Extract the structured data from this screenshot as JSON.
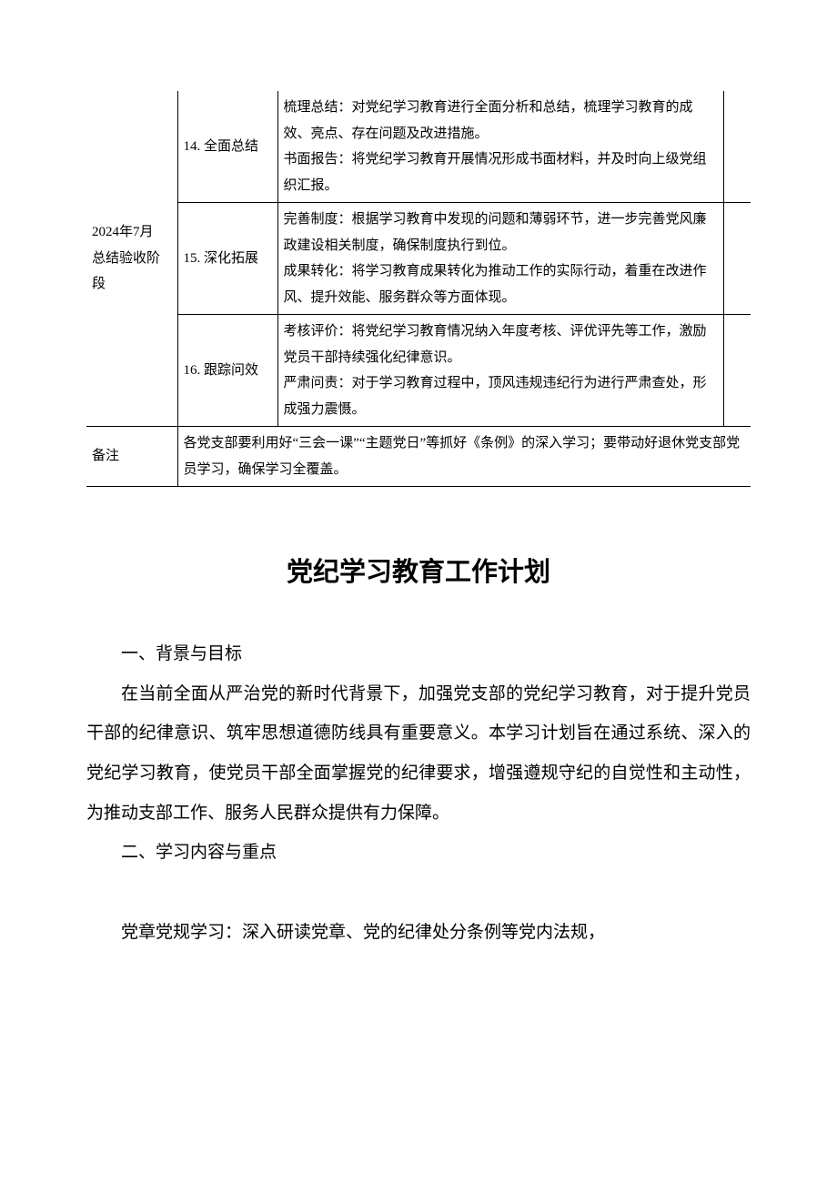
{
  "table": {
    "phase": "2024年7月\n总结验收阶段",
    "rows": [
      {
        "num": "14. 全面总结",
        "desc": "梳理总结：对党纪学习教育进行全面分析和总结，梳理学习教育的成效、亮点、存在问题及改进措施。\n书面报告：将党纪学习教育开展情况形成书面材料，并及时向上级党组织汇报。"
      },
      {
        "num": "15. 深化拓展",
        "desc": "完善制度：根据学习教育中发现的问题和薄弱环节，进一步完善党风廉政建设相关制度，确保制度执行到位。\n成果转化：将学习教育成果转化为推动工作的实际行动，着重在改进作风、提升效能、服务群众等方面体现。"
      },
      {
        "num": "16. 跟踪问效",
        "desc": "考核评价：将党纪学习教育情况纳入年度考核、评优评先等工作，激励党员干部持续强化纪律意识。\n严肃问责：对于学习教育过程中，顶风违规违纪行为进行严肃查处，形成强力震慑。"
      }
    ],
    "note_label": "备注",
    "note": "各党支部要利用好“三会一课”“主题党日”等抓好《条例》的深入学习；要带动好退休党支部党员学习，确保学习全覆盖。"
  },
  "doc": {
    "title": "党纪学习教育工作计划",
    "h1": "一、背景与目标",
    "p1": "在当前全面从严治党的新时代背景下，加强党支部的党纪学习教育，对于提升党员干部的纪律意识、筑牢思想道德防线具有重要意义。本学习计划旨在通过系统、深入的党纪学习教育，使党员干部全面掌握党的纪律要求，增强遵规守纪的自觉性和主动性，为推动支部工作、服务人民群众提供有力保障。",
    "h2": "二、学习内容与重点",
    "p2": "党章党规学习：深入研读党章、党的纪律处分条例等党内法规，"
  }
}
